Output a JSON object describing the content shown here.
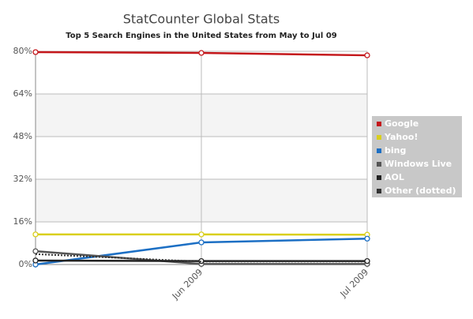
{
  "chart_data": {
    "type": "line",
    "title": "StatCounter Global Stats",
    "subtitle": "Top 5 Search Engines in the United States from May to Jul 09",
    "categories": [
      null,
      "Jun 2009",
      "Jul 2009"
    ],
    "series": [
      {
        "name": "Google",
        "color": "#c4171b",
        "values": [
          79.7,
          79.4,
          78.5
        ]
      },
      {
        "name": "Yahoo!",
        "color": "#d9cf1c",
        "values": [
          11.3,
          11.3,
          11.2
        ]
      },
      {
        "name": "bing",
        "color": "#1c6fc4",
        "values": [
          0,
          8.3,
          9.7
        ]
      },
      {
        "name": "Windows Live",
        "color": "#555555",
        "values": [
          5.0,
          0.2,
          0.2
        ]
      },
      {
        "name": "AOL",
        "color": "#222222",
        "values": [
          1.5,
          1.3,
          1.3
        ]
      },
      {
        "name": "Other (dotted)",
        "color": "#333333",
        "dash": "dotted",
        "values": [
          3.9,
          1.1,
          1.1
        ]
      }
    ],
    "ylim": [
      0,
      80
    ],
    "yticks": [
      {
        "value": 0,
        "label": "0%"
      },
      {
        "value": 16,
        "label": "16%"
      },
      {
        "value": 32,
        "label": "32%"
      },
      {
        "value": 48,
        "label": "48%"
      },
      {
        "value": 64,
        "label": "64%"
      },
      {
        "value": 80,
        "label": "80%"
      }
    ],
    "grid": true,
    "legend": "right"
  }
}
